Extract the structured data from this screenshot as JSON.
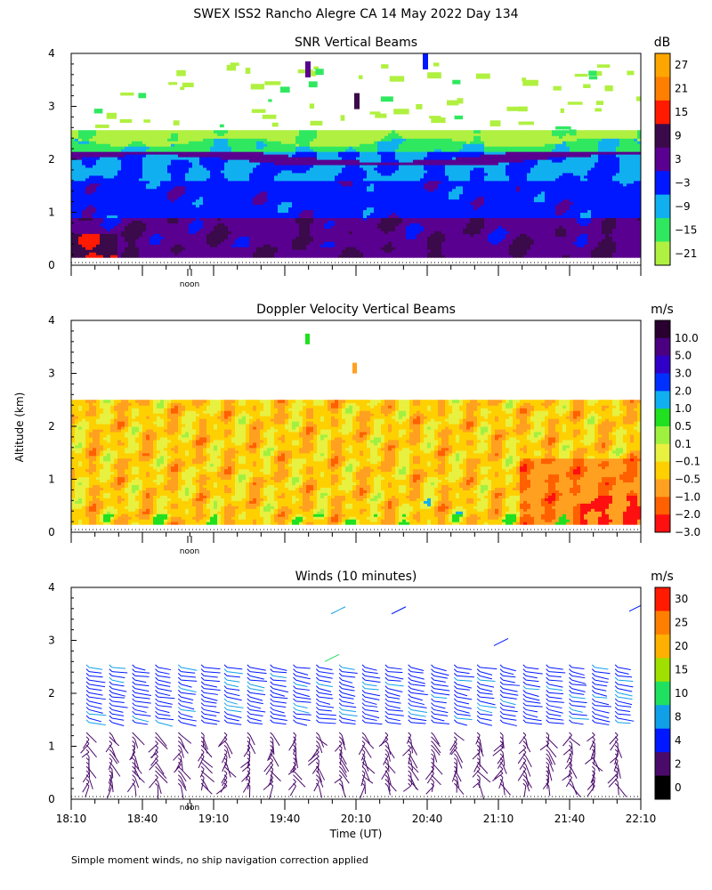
{
  "figure": {
    "title": "SWEX ISS2 Rancho Alegre CA  14 May 2022 Day 134",
    "ylabel": "Altitude (km)",
    "xlabel": "Time (UT)",
    "footnote": "Simple moment winds, no ship navigation correction applied",
    "noon_label": "noon"
  },
  "chart_data": [
    {
      "type": "heatmap",
      "title": "SNR Vertical Beams",
      "ylim": [
        0,
        4
      ],
      "y_ticks": [
        "0",
        "1",
        "2",
        "3",
        "4"
      ],
      "colorbar": {
        "unit": "dB",
        "labels": [
          "27",
          "21",
          "15",
          "9",
          "3",
          "−3",
          "−9",
          "−15",
          "−21"
        ],
        "colors": [
          "#ffa500",
          "#ff7f00",
          "#ff1a00",
          "#3a0a4a",
          "#5a0090",
          "#0018ff",
          "#10b0f0",
          "#30e860",
          "#b0f040"
        ]
      }
    },
    {
      "type": "heatmap",
      "title": "Doppler Velocity Vertical Beams",
      "ylim": [
        0,
        4
      ],
      "y_ticks": [
        "0",
        "1",
        "2",
        "3",
        "4"
      ],
      "colorbar": {
        "unit": "m/s",
        "labels": [
          "10.0",
          "5.0",
          "3.0",
          "2.0",
          "1.0",
          "0.5",
          "0.1",
          "−0.1",
          "−0.5",
          "−1.0",
          "−2.0",
          "−3.0"
        ],
        "colors": [
          "#2a0030",
          "#4a0080",
          "#3000c8",
          "#0030ff",
          "#10b0f0",
          "#20e020",
          "#a0f040",
          "#e8f040",
          "#ffd000",
          "#ffa020",
          "#ff6000",
          "#ff1010"
        ]
      }
    },
    {
      "type": "scatter",
      "title": "Winds (10 minutes)",
      "ylim": [
        0,
        4
      ],
      "y_ticks": [
        "0",
        "1",
        "2",
        "3",
        "4"
      ],
      "x_ticks": [
        "18:10",
        "18:40",
        "19:10",
        "19:40",
        "20:10",
        "20:40",
        "21:10",
        "21:40",
        "22:10"
      ],
      "colorbar": {
        "unit": "m/s",
        "labels": [
          "30",
          "25",
          "20",
          "15",
          "10",
          "8",
          "4",
          "2",
          "0"
        ],
        "colors": [
          "#ff1a00",
          "#ff7f00",
          "#ffb000",
          "#a0e000",
          "#20e060",
          "#10a0e8",
          "#0018ff",
          "#4a0a6a",
          "#000000"
        ]
      }
    }
  ],
  "colors": {
    "snr_scale": [
      "#b0f040",
      "#30e860",
      "#10b0f0",
      "#0018ff",
      "#5a0090",
      "#3a0a4a",
      "#ff1a00",
      "#ff7f00",
      "#ffa500"
    ],
    "vel_scale": [
      "#ff1010",
      "#ff6000",
      "#ffa020",
      "#ffd000",
      "#e8f040",
      "#a0f040",
      "#20e020",
      "#10b0f0",
      "#0030ff",
      "#3000c8",
      "#4a0080",
      "#2a0030"
    ],
    "wind_scale": [
      "#000000",
      "#4a0a6a",
      "#0018ff",
      "#10a0e8",
      "#20e060",
      "#a0e000",
      "#ffb000",
      "#ff7f00",
      "#ff1a00"
    ]
  }
}
